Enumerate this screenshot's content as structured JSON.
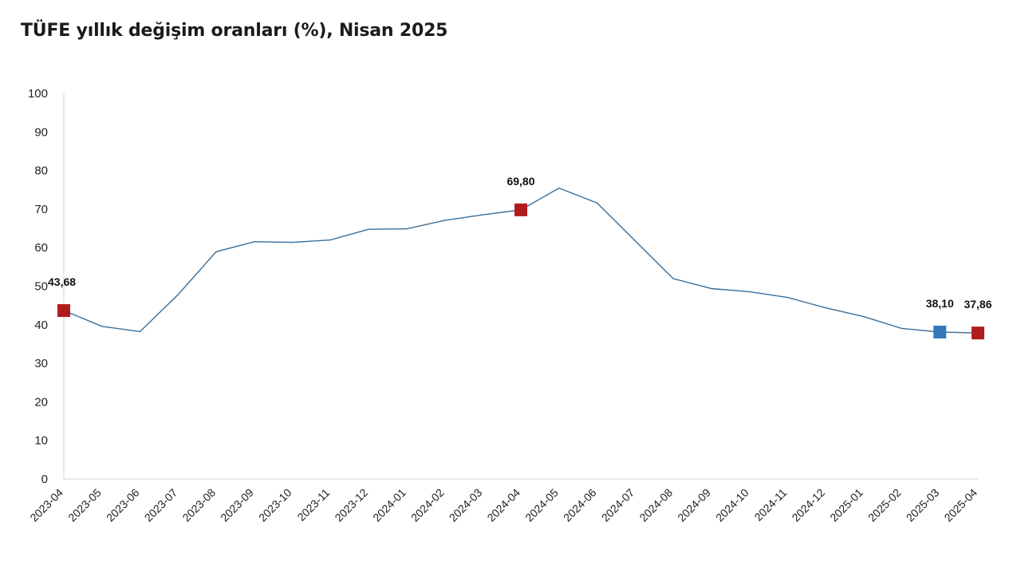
{
  "chart_data": {
    "type": "line",
    "title": "TÜFE yıllık değişim oranları (%), Nisan 2025",
    "xlabel": "",
    "ylabel": "",
    "ylim": [
      0,
      100
    ],
    "yticks": [
      "0",
      "10",
      "20",
      "30",
      "40",
      "50",
      "60",
      "70",
      "80",
      "90",
      "100"
    ],
    "grid": false,
    "legend": "none",
    "categories": [
      "2023-04",
      "2023-05",
      "2023-06",
      "2023-07",
      "2023-08",
      "2023-09",
      "2023-10",
      "2023-11",
      "2023-12",
      "2024-01",
      "2024-02",
      "2024-03",
      "2024-04",
      "2024-05",
      "2024-06",
      "2024-07",
      "2024-08",
      "2024-09",
      "2024-10",
      "2024-11",
      "2024-12",
      "2025-01",
      "2025-02",
      "2025-03",
      "2025-04"
    ],
    "series": [
      {
        "values": [
          43.68,
          39.59,
          38.21,
          47.83,
          58.94,
          61.53,
          61.36,
          61.98,
          64.77,
          64.86,
          67.07,
          68.5,
          69.8,
          75.45,
          71.6,
          61.78,
          51.97,
          49.38,
          48.58,
          47.09,
          44.38,
          42.12,
          39.05,
          38.1,
          37.86
        ],
        "color": "#3a6f9a"
      }
    ],
    "highlights": [
      {
        "category": "2023-04",
        "value": 43.68,
        "label": "43,68",
        "color": "#b01c1c"
      },
      {
        "category": "2024-04",
        "value": 69.8,
        "label": "69,80",
        "color": "#b01c1c"
      },
      {
        "category": "2025-03",
        "value": 38.1,
        "label": "38,10",
        "color": "#3379b8"
      },
      {
        "category": "2025-04",
        "value": 37.86,
        "label": "37,86",
        "color": "#b01c1c"
      }
    ]
  }
}
